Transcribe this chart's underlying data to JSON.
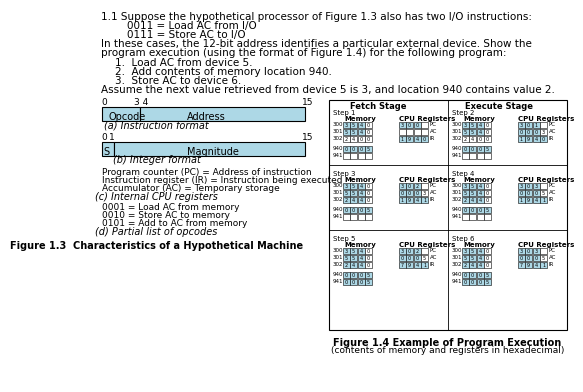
{
  "title_line1": "1.1 Suppose the hypothetical processor of Figure 1.3 also has two I/O instructions:",
  "title_line2": "        0011 = Load AC from I/O",
  "title_line3": "        0111 = Store AC to I/O",
  "body_line1": "In these cases, the 12-bit address identifies a particular external device. Show the",
  "body_line2": "program execution (using the format of Figure 1.4) for the following program:",
  "item1": "1.  Load AC from device 5.",
  "item2": "2.  Add contents of memory location 940.",
  "item3": "3.  Store AC to device 6.",
  "assume": "Assume the next value retrieved from device 5 is 3, and location 940 contains value 2.",
  "fig13_label": "Figure 1.3  Characteristics of a Hypothetical Machine",
  "fig14_label": "Figure 1.4 Example of Program Execution",
  "fig14_sub": "(contents of memory and registers in hexadecimal)",
  "bg_color": "#ffffff",
  "box_fill": "#add8e6",
  "text_color": "#000000",
  "font_size": 7.5
}
